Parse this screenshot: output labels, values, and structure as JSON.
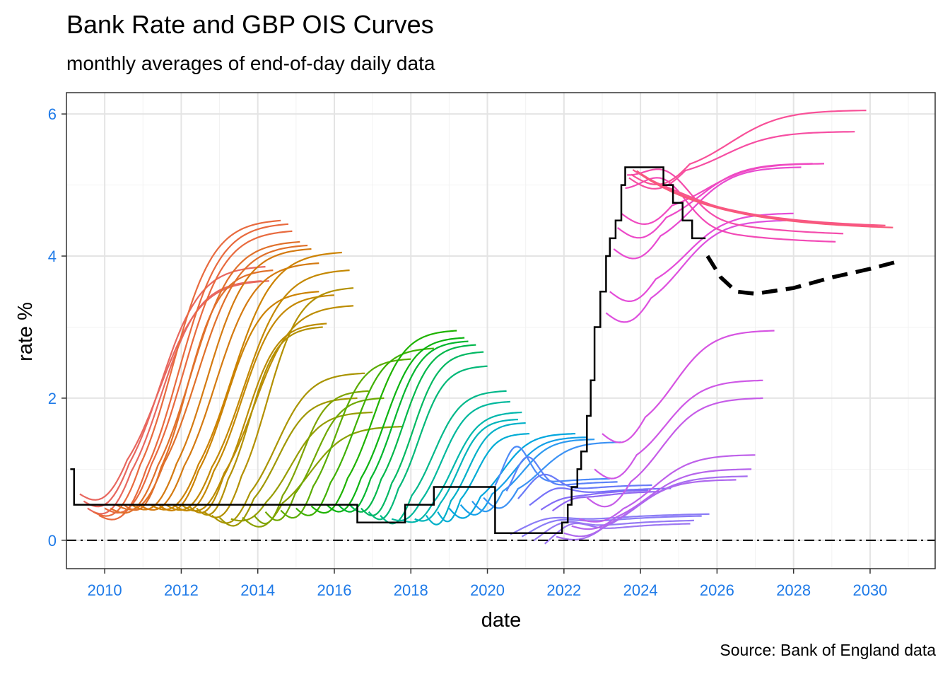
{
  "chart_data": {
    "type": "line",
    "title": "Bank Rate and GBP OIS Curves",
    "subtitle": "monthly averages of end-of-day daily data",
    "caption": "Source: Bank of England data",
    "xlabel": "date",
    "ylabel": "rate %",
    "xlim": [
      2009.0,
      2031.7
    ],
    "ylim": [
      -0.4,
      6.3
    ],
    "x_ticks": [
      2010,
      2012,
      2014,
      2016,
      2018,
      2020,
      2022,
      2024,
      2026,
      2028,
      2030
    ],
    "y_ticks": [
      0,
      2,
      4,
      6
    ],
    "grid": true,
    "legend": "none",
    "reference_lines": [
      {
        "y": 0,
        "style": "dash-dot"
      }
    ],
    "bank_rate_steps": [
      [
        2009.1,
        1.0
      ],
      [
        2009.2,
        0.5
      ],
      [
        2016.6,
        0.5
      ],
      [
        2016.6,
        0.25
      ],
      [
        2017.85,
        0.25
      ],
      [
        2017.85,
        0.5
      ],
      [
        2018.6,
        0.5
      ],
      [
        2018.6,
        0.75
      ],
      [
        2020.2,
        0.75
      ],
      [
        2020.2,
        0.1
      ],
      [
        2021.95,
        0.1
      ],
      [
        2021.95,
        0.25
      ],
      [
        2022.1,
        0.5
      ],
      [
        2022.2,
        0.75
      ],
      [
        2022.35,
        1.0
      ],
      [
        2022.45,
        1.25
      ],
      [
        2022.6,
        1.75
      ],
      [
        2022.7,
        2.25
      ],
      [
        2022.8,
        3.0
      ],
      [
        2022.95,
        3.5
      ],
      [
        2023.1,
        4.0
      ],
      [
        2023.2,
        4.25
      ],
      [
        2023.35,
        4.5
      ],
      [
        2023.5,
        5.0
      ],
      [
        2023.6,
        5.25
      ],
      [
        2024.55,
        5.25
      ],
      [
        2024.6,
        5.0
      ],
      [
        2024.85,
        4.75
      ],
      [
        2025.1,
        4.5
      ],
      [
        2025.35,
        4.25
      ],
      [
        2025.7,
        4.25
      ]
    ],
    "forward_curve": [
      [
        2025.75,
        4.0
      ],
      [
        2026.1,
        3.7
      ],
      [
        2026.5,
        3.5
      ],
      [
        2027.0,
        3.47
      ],
      [
        2028.0,
        3.55
      ],
      [
        2029.0,
        3.7
      ],
      [
        2030.0,
        3.82
      ],
      [
        2030.7,
        3.92
      ]
    ],
    "ois_curves": [
      {
        "start": 2009.35,
        "base": 0.65,
        "peak": 3.65,
        "end": 2014.3,
        "color": "#e8675f"
      },
      {
        "start": 2009.45,
        "base": 0.55,
        "peak": 3.85,
        "end": 2014.2,
        "color": "#e8675f"
      },
      {
        "start": 2009.55,
        "base": 0.45,
        "peak": 3.65,
        "end": 2014.1,
        "color": "#e8675f"
      },
      {
        "start": 2009.7,
        "base": 0.4,
        "peak": 4.5,
        "end": 2014.6,
        "color": "#e86a3e"
      },
      {
        "start": 2009.85,
        "base": 0.35,
        "peak": 4.45,
        "end": 2014.8,
        "color": "#e86a3e"
      },
      {
        "start": 2010.0,
        "base": 0.45,
        "peak": 4.35,
        "end": 2014.9,
        "color": "#e86a3e"
      },
      {
        "start": 2010.15,
        "base": 0.45,
        "peak": 4.2,
        "end": 2015.1,
        "color": "#e0702a"
      },
      {
        "start": 2010.3,
        "base": 0.5,
        "peak": 4.15,
        "end": 2015.3,
        "color": "#e0702a"
      },
      {
        "start": 2010.5,
        "base": 0.5,
        "peak": 3.8,
        "end": 2014.4,
        "color": "#e0702a"
      },
      {
        "start": 2010.7,
        "base": 0.5,
        "peak": 4.1,
        "end": 2015.4,
        "color": "#d47a10"
      },
      {
        "start": 2010.9,
        "base": 0.5,
        "peak": 3.9,
        "end": 2015.6,
        "color": "#d47a10"
      },
      {
        "start": 2011.2,
        "base": 0.5,
        "peak": 4.05,
        "end": 2016.2,
        "color": "#cc8200"
      },
      {
        "start": 2011.4,
        "base": 0.5,
        "peak": 3.5,
        "end": 2015.6,
        "color": "#cc8200"
      },
      {
        "start": 2011.6,
        "base": 0.5,
        "peak": 3.8,
        "end": 2016.4,
        "color": "#c48800"
      },
      {
        "start": 2011.8,
        "base": 0.5,
        "peak": 3.45,
        "end": 2016.0,
        "color": "#c48800"
      },
      {
        "start": 2012.0,
        "base": 0.5,
        "peak": 3.3,
        "end": 2016.5,
        "color": "#bc8c00"
      },
      {
        "start": 2012.2,
        "base": 0.48,
        "peak": 3.05,
        "end": 2015.8,
        "color": "#bc8c00"
      },
      {
        "start": 2012.4,
        "base": 0.45,
        "peak": 3.0,
        "end": 2015.7,
        "color": "#b39000"
      },
      {
        "start": 2012.6,
        "base": 0.4,
        "peak": 3.55,
        "end": 2016.5,
        "color": "#b39000"
      },
      {
        "start": 2012.8,
        "base": 0.35,
        "peak": 2.35,
        "end": 2016.8,
        "color": "#a99400"
      },
      {
        "start": 2013.0,
        "base": 0.32,
        "peak": 2.0,
        "end": 2016.6,
        "color": "#a09800"
      },
      {
        "start": 2013.3,
        "base": 0.3,
        "peak": 1.8,
        "end": 2017.0,
        "color": "#969c00"
      },
      {
        "start": 2013.6,
        "base": 0.32,
        "peak": 1.6,
        "end": 2017.8,
        "color": "#8aa000"
      },
      {
        "start": 2013.9,
        "base": 0.35,
        "peak": 2.1,
        "end": 2016.9,
        "color": "#7ea400"
      },
      {
        "start": 2014.2,
        "base": 0.4,
        "peak": 2.0,
        "end": 2017.3,
        "color": "#6ea800"
      },
      {
        "start": 2014.6,
        "base": 0.42,
        "peak": 2.55,
        "end": 2018.0,
        "color": "#5aac00"
      },
      {
        "start": 2015.0,
        "base": 0.45,
        "peak": 2.7,
        "end": 2018.6,
        "color": "#3eb000"
      },
      {
        "start": 2015.4,
        "base": 0.48,
        "peak": 2.95,
        "end": 2019.2,
        "color": "#1eb300"
      },
      {
        "start": 2015.8,
        "base": 0.5,
        "peak": 2.85,
        "end": 2019.4,
        "color": "#0cb412"
      },
      {
        "start": 2016.1,
        "base": 0.5,
        "peak": 2.8,
        "end": 2019.5,
        "color": "#00b62e"
      },
      {
        "start": 2016.4,
        "base": 0.5,
        "peak": 2.75,
        "end": 2019.7,
        "color": "#00b74a"
      },
      {
        "start": 2016.7,
        "base": 0.45,
        "peak": 2.65,
        "end": 2019.9,
        "color": "#00b862"
      },
      {
        "start": 2016.9,
        "base": 0.4,
        "peak": 2.45,
        "end": 2020.0,
        "color": "#00b878"
      },
      {
        "start": 2017.2,
        "base": 0.35,
        "peak": 2.1,
        "end": 2020.5,
        "color": "#00b88a"
      },
      {
        "start": 2017.5,
        "base": 0.3,
        "peak": 1.95,
        "end": 2020.6,
        "color": "#00b89c"
      },
      {
        "start": 2017.8,
        "base": 0.28,
        "peak": 1.8,
        "end": 2020.9,
        "color": "#00b7ac"
      },
      {
        "start": 2018.1,
        "base": 0.3,
        "peak": 1.7,
        "end": 2020.8,
        "color": "#00b4bb"
      },
      {
        "start": 2018.4,
        "base": 0.35,
        "peak": 1.65,
        "end": 2021.0,
        "color": "#00b0c8"
      },
      {
        "start": 2018.7,
        "base": 0.4,
        "peak": 1.5,
        "end": 2021.1,
        "color": "#00acd4"
      },
      {
        "start": 2019.0,
        "base": 0.45,
        "peak": 1.5,
        "end": 2022.3,
        "color": "#00a6de"
      },
      {
        "start": 2019.3,
        "base": 0.5,
        "peak": 1.45,
        "end": 2022.6,
        "color": "#14a0e8"
      },
      {
        "start": 2019.6,
        "base": 0.55,
        "peak": 1.42,
        "end": 2022.8,
        "color": "#2c9af0"
      },
      {
        "start": 2019.9,
        "base": 0.6,
        "peak": 1.38,
        "end": 2023.5,
        "color": "#3c92f4"
      },
      {
        "start": 2020.2,
        "base": 0.6,
        "peak": 1.2,
        "end": 2023.2,
        "color": "#4c8af8"
      },
      {
        "start": 2020.5,
        "base": 0.55,
        "peak": 1.05,
        "end": 2023.4,
        "color": "#5a82f8"
      },
      {
        "start": 2020.8,
        "base": 0.5,
        "peak": 0.8,
        "end": 2024.3,
        "color": "#687af8"
      },
      {
        "start": 2021.1,
        "base": 0.45,
        "peak": 0.6,
        "end": 2024.8,
        "color": "#7672f8"
      },
      {
        "start": 2021.4,
        "base": 0.42,
        "peak": 0.45,
        "end": 2024.2,
        "color": "#846cf6"
      },
      {
        "start": 2021.7,
        "base": 0.4,
        "peak": 0.45,
        "end": 2024.5,
        "color": "#9066f2"
      },
      {
        "start": 2020.6,
        "base": 0.05,
        "peak": 0.16,
        "end": 2025.8,
        "color": "#8b7cf6"
      },
      {
        "start": 2020.9,
        "base": 0.02,
        "peak": 0.13,
        "end": 2025.6,
        "color": "#8b7cf6"
      },
      {
        "start": 2021.2,
        "base": -0.05,
        "peak": 0.1,
        "end": 2025.4,
        "color": "#957af4"
      },
      {
        "start": 2021.5,
        "base": -0.1,
        "peak": 0.08,
        "end": 2025.3,
        "color": "#9c76f2"
      },
      {
        "start": 2021.8,
        "base": 0.05,
        "peak": 0.9,
        "end": 2026.8,
        "color": "#a66ef0"
      },
      {
        "start": 2022.0,
        "base": 0.1,
        "peak": 0.85,
        "end": 2026.5,
        "color": "#ae68ee"
      },
      {
        "start": 2022.2,
        "base": 0.2,
        "peak": 1.0,
        "end": 2026.9,
        "color": "#b664ec"
      },
      {
        "start": 2022.4,
        "base": 0.3,
        "peak": 1.2,
        "end": 2027.0,
        "color": "#be60ea"
      },
      {
        "start": 2022.6,
        "base": 0.6,
        "peak": 2.0,
        "end": 2027.2,
        "color": "#c65ce8"
      },
      {
        "start": 2022.8,
        "base": 1.0,
        "peak": 2.25,
        "end": 2027.2,
        "color": "#ce58e6"
      },
      {
        "start": 2023.0,
        "base": 1.5,
        "peak": 2.95,
        "end": 2027.5,
        "color": "#d654e2"
      },
      {
        "start": 2023.1,
        "base": 3.2,
        "peak": 4.5,
        "end": 2027.8,
        "color": "#de50de"
      },
      {
        "start": 2023.2,
        "base": 3.5,
        "peak": 4.6,
        "end": 2028.0,
        "color": "#e44cd8"
      },
      {
        "start": 2023.3,
        "base": 4.1,
        "peak": 5.25,
        "end": 2028.2,
        "color": "#e84ad0"
      },
      {
        "start": 2023.4,
        "base": 4.4,
        "peak": 5.3,
        "end": 2028.5,
        "color": "#ec4ac8"
      },
      {
        "start": 2023.5,
        "base": 4.6,
        "peak": 5.3,
        "end": 2028.8,
        "color": "#f04ac0"
      },
      {
        "start": 2023.6,
        "base": 4.8,
        "peak": 5.35,
        "end": 2029.1,
        "color": "#f24ab6"
      },
      {
        "start": 2023.65,
        "base": 5.0,
        "peak": 5.5,
        "end": 2029.3,
        "color": "#f44cac"
      },
      {
        "start": 2023.7,
        "base": 5.1,
        "peak": 5.75,
        "end": 2029.6,
        "color": "#f64ea2"
      },
      {
        "start": 2023.75,
        "base": 5.15,
        "peak": 6.05,
        "end": 2029.9,
        "color": "#f85098"
      },
      {
        "start": 2023.8,
        "base": 5.2,
        "peak": 5.25,
        "end": 2030.2,
        "color": "#f8538e"
      },
      {
        "start": 2023.9,
        "base": 5.2,
        "peak": 5.2,
        "end": 2030.4,
        "color": "#f85684"
      },
      {
        "start": 2024.0,
        "base": 5.15,
        "peak": 5.15,
        "end": 2030.6,
        "color": "#f8597a"
      }
    ]
  }
}
